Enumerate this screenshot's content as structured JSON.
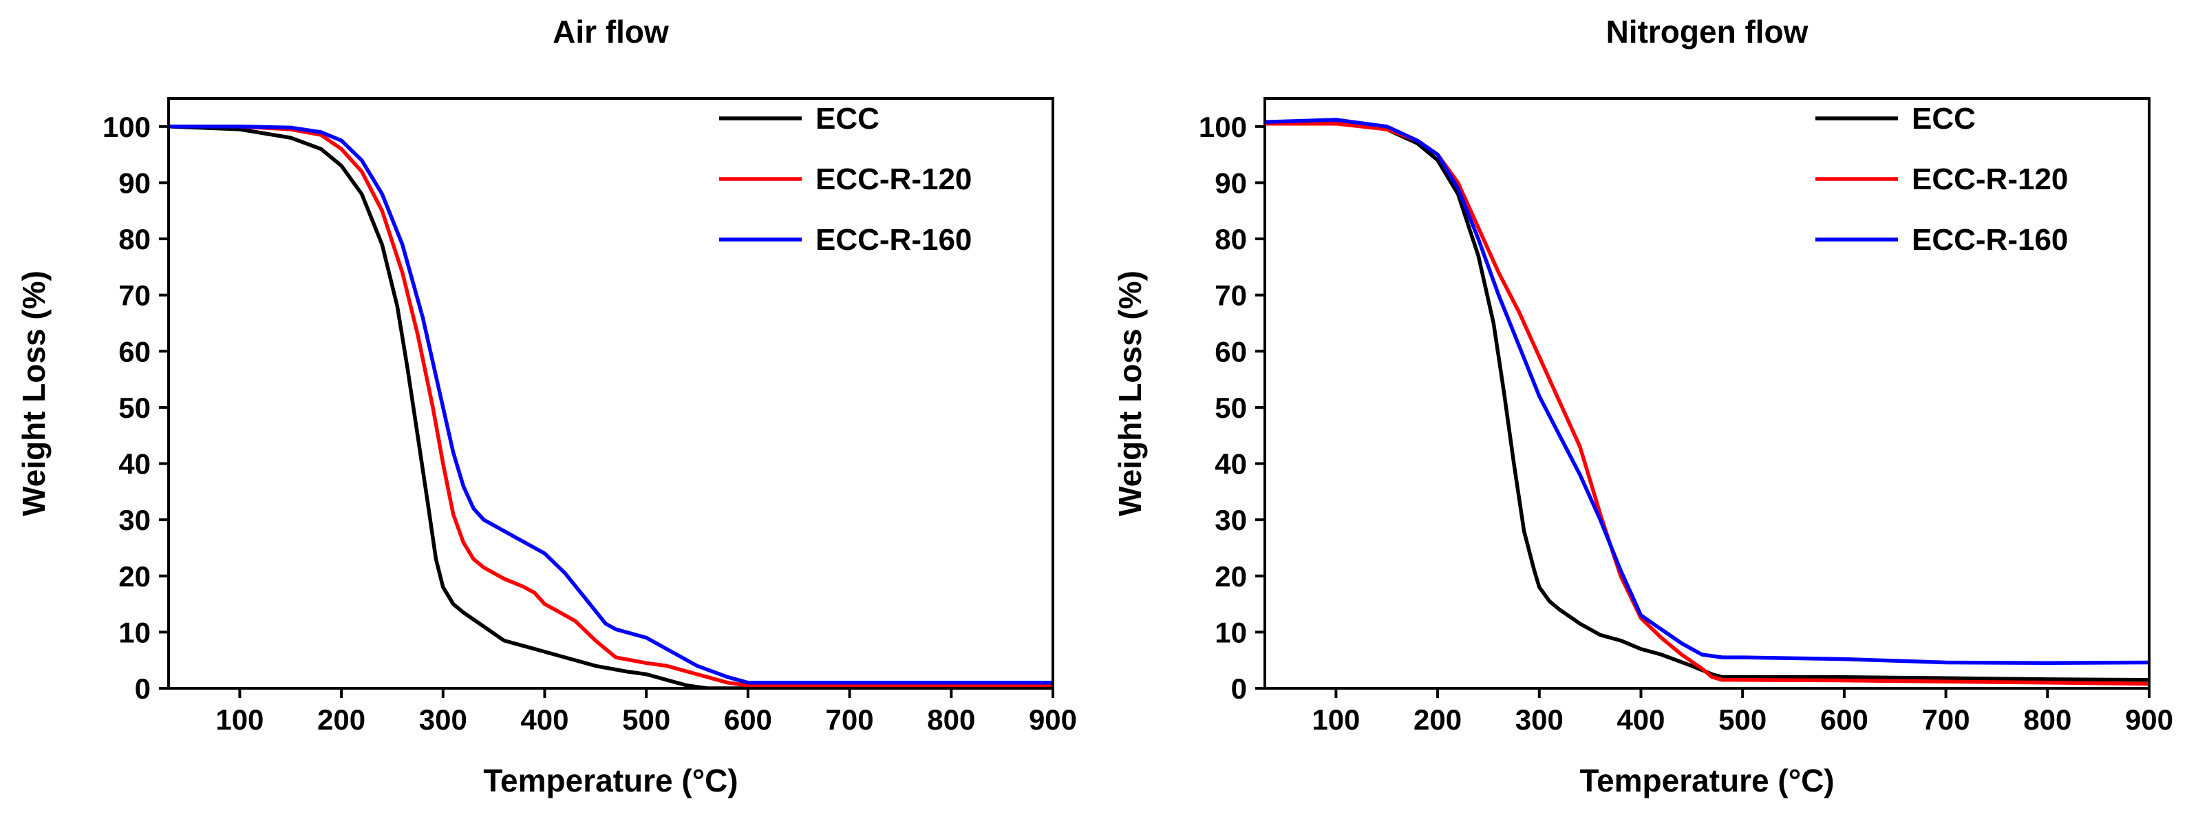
{
  "chart_data": [
    {
      "type": "line",
      "title": "Air flow",
      "xlabel": "Temperature (°C)",
      "ylabel": "Weight Loss (%)",
      "xlim": [
        30,
        900
      ],
      "ylim": [
        0,
        105
      ],
      "xticks": [
        100,
        200,
        300,
        400,
        500,
        600,
        700,
        800,
        900
      ],
      "yticks": [
        0,
        10,
        20,
        30,
        40,
        50,
        60,
        70,
        80,
        90,
        100
      ],
      "legend_position": "top-right",
      "series": [
        {
          "name": "ECC",
          "color": "#000000",
          "x": [
            30,
            100,
            150,
            180,
            200,
            220,
            240,
            255,
            265,
            275,
            285,
            293,
            300,
            310,
            320,
            340,
            360,
            380,
            400,
            420,
            450,
            480,
            500,
            520,
            540,
            560,
            600,
            700,
            800,
            900
          ],
          "y": [
            100,
            99.5,
            98,
            96,
            93,
            88,
            79,
            68,
            57,
            45,
            33,
            23,
            18,
            15,
            13.5,
            11,
            8.5,
            7.5,
            6.5,
            5.5,
            4,
            3,
            2.5,
            1.5,
            0.5,
            0,
            0,
            0,
            0,
            0
          ]
        },
        {
          "name": "ECC-R-120",
          "color": "#ff0000",
          "x": [
            30,
            100,
            150,
            180,
            200,
            220,
            240,
            260,
            275,
            290,
            300,
            310,
            320,
            330,
            340,
            360,
            380,
            390,
            395,
            400,
            410,
            420,
            430,
            450,
            470,
            500,
            520,
            550,
            580,
            600,
            700,
            800,
            900
          ],
          "y": [
            100,
            100,
            99.5,
            98.5,
            96,
            92,
            85,
            74,
            63,
            50,
            40,
            31,
            26,
            23,
            21.5,
            19.5,
            18,
            17,
            16,
            15,
            14,
            13,
            12,
            8.5,
            5.5,
            4.5,
            4,
            2.5,
            1,
            0.5,
            0.5,
            0.5,
            0.5
          ]
        },
        {
          "name": "ECC-R-160",
          "color": "#0000ff",
          "x": [
            30,
            100,
            150,
            180,
            200,
            220,
            240,
            260,
            280,
            300,
            310,
            320,
            330,
            340,
            360,
            380,
            395,
            400,
            420,
            440,
            460,
            470,
            500,
            520,
            550,
            580,
            600,
            700,
            800,
            900
          ],
          "y": [
            100,
            100,
            99.8,
            99,
            97.5,
            94,
            88,
            79,
            66,
            50,
            42,
            36,
            32,
            30,
            28,
            26,
            24.5,
            24,
            20.5,
            16,
            11.5,
            10.5,
            9,
            7,
            4,
            2,
            1,
            1,
            1,
            1
          ]
        }
      ]
    },
    {
      "type": "line",
      "title": "Nitrogen flow",
      "xlabel": "Temperature (°C)",
      "ylabel": "Weight Loss (%)",
      "xlim": [
        30,
        900
      ],
      "ylim": [
        0,
        105
      ],
      "xticks": [
        100,
        200,
        300,
        400,
        500,
        600,
        700,
        800,
        900
      ],
      "yticks": [
        0,
        10,
        20,
        30,
        40,
        50,
        60,
        70,
        80,
        90,
        100
      ],
      "legend_position": "top-right",
      "series": [
        {
          "name": "ECC",
          "color": "#000000",
          "x": [
            30,
            100,
            150,
            180,
            200,
            220,
            240,
            255,
            265,
            275,
            285,
            295,
            300,
            310,
            320,
            340,
            360,
            380,
            400,
            420,
            450,
            470,
            480,
            500,
            600,
            700,
            800,
            900
          ],
          "y": [
            100.5,
            100.8,
            99.5,
            97,
            94,
            88,
            77,
            65,
            53,
            40,
            28,
            21,
            18,
            15.5,
            14,
            11.5,
            9.5,
            8.5,
            7,
            6,
            4,
            2.5,
            2,
            2,
            2,
            1.8,
            1.6,
            1.5
          ]
        },
        {
          "name": "ECC-R-120",
          "color": "#ff0000",
          "x": [
            30,
            100,
            150,
            180,
            200,
            220,
            240,
            260,
            280,
            300,
            320,
            340,
            360,
            380,
            400,
            420,
            440,
            460,
            470,
            480,
            500,
            600,
            700,
            800,
            900
          ],
          "y": [
            100.5,
            100.5,
            99.5,
            97.5,
            95,
            90,
            82,
            74,
            67,
            59,
            51,
            43,
            31,
            20,
            12.5,
            9,
            6,
            3.5,
            2,
            1.5,
            1.5,
            1.4,
            1.2,
            1,
            0.8
          ]
        },
        {
          "name": "ECC-R-160",
          "color": "#0000ff",
          "x": [
            30,
            100,
            150,
            180,
            200,
            220,
            240,
            260,
            280,
            300,
            320,
            340,
            360,
            380,
            400,
            420,
            440,
            460,
            480,
            500,
            600,
            700,
            800,
            900
          ],
          "y": [
            100.8,
            101.2,
            100,
            97.5,
            95,
            89,
            80,
            70,
            61,
            52,
            45,
            38,
            30,
            21,
            13,
            10.5,
            8,
            6,
            5.5,
            5.5,
            5.2,
            4.6,
            4.5,
            4.6
          ]
        }
      ]
    }
  ]
}
